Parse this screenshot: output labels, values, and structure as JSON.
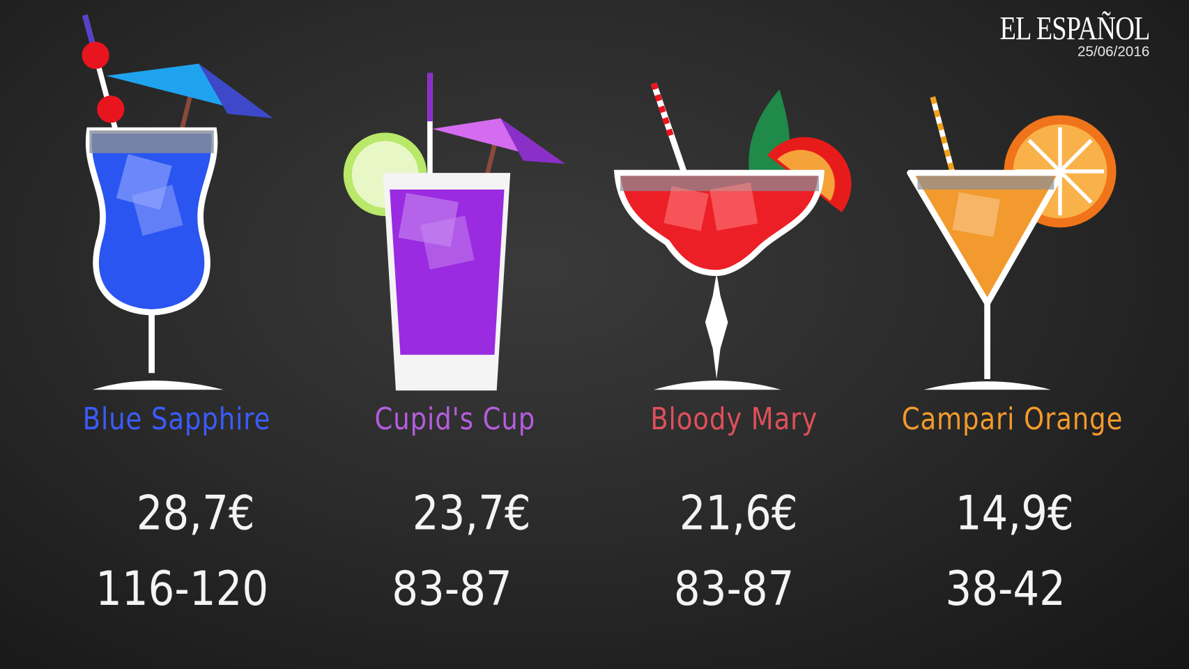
{
  "logo": {
    "text": "EL ESPAÑOL",
    "date": "25/06/2016"
  },
  "colors": {
    "blue": "#3b5cff",
    "purple": "#b45ddf",
    "red": "#e0505a",
    "orange": "#f39a2c"
  },
  "cocktails": [
    {
      "name": "Blue Sapphire",
      "price": "28,7€",
      "range": "116-120",
      "color": "#3b5cff"
    },
    {
      "name": "Cupid's Cup",
      "price": "23,7€",
      "range": "83-87",
      "color": "#b45ddf"
    },
    {
      "name": "Bloody Mary",
      "price": "21,6€",
      "range": "83-87",
      "color": "#e0505a"
    },
    {
      "name": "Campari Orange",
      "price": "14,9€",
      "range": "38-42",
      "color": "#f39a2c"
    }
  ]
}
